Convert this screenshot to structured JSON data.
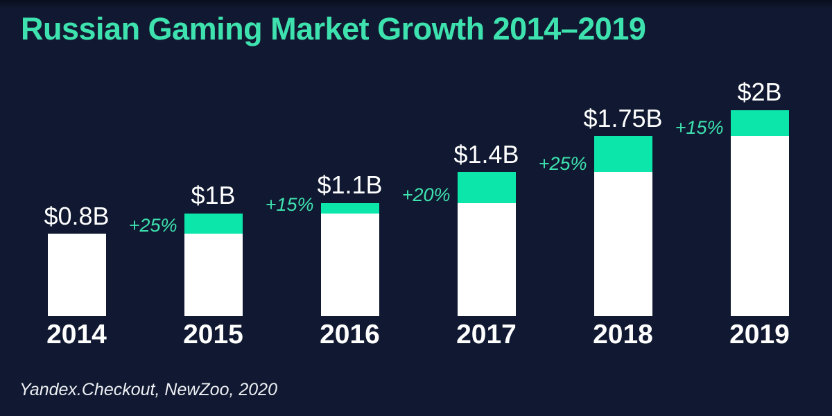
{
  "title": "Russian Gaming Market Growth 2014–2019",
  "source": "Yandex.Checkout, NewZoo, 2020",
  "colors": {
    "background": "#101931",
    "accent_mint": "#3ee2af",
    "bar_green": "#0ce6aa",
    "bar_white": "#ffffff",
    "text": "#ffffff"
  },
  "chart_data": {
    "type": "bar",
    "title": "Russian Gaming Market Growth 2014–2019",
    "categories": [
      "2014",
      "2015",
      "2016",
      "2017",
      "2018",
      "2019"
    ],
    "values": [
      0.8,
      1.0,
      1.1,
      1.4,
      1.75,
      2.0
    ],
    "value_labels": [
      "$0.8B",
      "$1B",
      "$1.1B",
      "$1.4B",
      "$1.75B",
      "$2B"
    ],
    "growth_percent": [
      null,
      25,
      15,
      20,
      25,
      15
    ],
    "growth_labels": [
      null,
      "+25%",
      "+15%",
      "+20%",
      "+25%",
      "+15%"
    ],
    "unit": "$B",
    "ylim": [
      0,
      2.2
    ],
    "grid": false,
    "legend": false,
    "bar_style": "stacked: white base = previous year value, green cap = year-over-year increment",
    "axis_labels": false
  }
}
